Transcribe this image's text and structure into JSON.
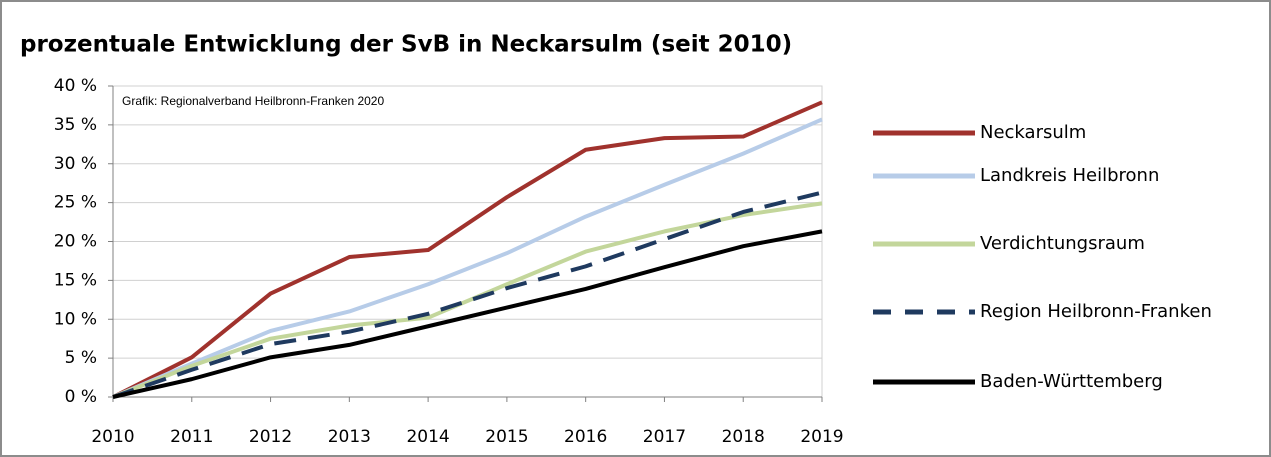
{
  "chart_data": {
    "type": "line",
    "title": "prozentuale Entwicklung der SvB in Neckarsulm (seit 2010)",
    "annotation": "Grafik: Regionalverband Heilbronn-Franken 2020",
    "categories": [
      "2010",
      "2011",
      "2012",
      "2013",
      "2014",
      "2015",
      "2016",
      "2017",
      "2018",
      "2019"
    ],
    "series": [
      {
        "name": "Neckarsulm",
        "color": "#a0322d",
        "line_style": "solid",
        "values": [
          0,
          5.1,
          13.3,
          18.0,
          18.9,
          25.7,
          31.8,
          33.3,
          33.5,
          37.9
        ]
      },
      {
        "name": "Landkreis Heilbronn",
        "color": "#b7cce8",
        "line_style": "solid",
        "values": [
          0,
          4.3,
          8.5,
          11.0,
          14.5,
          18.5,
          23.2,
          27.3,
          31.3,
          35.7
        ]
      },
      {
        "name": "Verdichtungsraum",
        "color": "#c3d69b",
        "line_style": "solid",
        "values": [
          0,
          4.0,
          7.5,
          9.2,
          10.2,
          14.5,
          18.7,
          21.3,
          23.4,
          24.9
        ]
      },
      {
        "name": "Region Heilbronn-Franken",
        "color": "#1f3a5f",
        "line_style": "dashed",
        "values": [
          0,
          3.5,
          6.8,
          8.4,
          10.7,
          14.0,
          16.8,
          20.3,
          23.8,
          26.3
        ]
      },
      {
        "name": "Baden-Württemberg",
        "color": "#000000",
        "line_style": "solid",
        "values": [
          0,
          2.3,
          5.1,
          6.7,
          9.1,
          11.5,
          13.9,
          16.7,
          19.4,
          21.3
        ]
      }
    ],
    "ylim": [
      0,
      40
    ],
    "yticks": [
      {
        "value": 0,
        "label": "0 %"
      },
      {
        "value": 5,
        "label": "5 %"
      },
      {
        "value": 10,
        "label": "10 %"
      },
      {
        "value": 15,
        "label": "15 %"
      },
      {
        "value": 20,
        "label": "20 %"
      },
      {
        "value": 25,
        "label": "25 %"
      },
      {
        "value": 30,
        "label": "30 %"
      },
      {
        "value": 35,
        "label": "35 %"
      },
      {
        "value": 40,
        "label": "40 %"
      }
    ],
    "grid": true,
    "legend": "right"
  }
}
